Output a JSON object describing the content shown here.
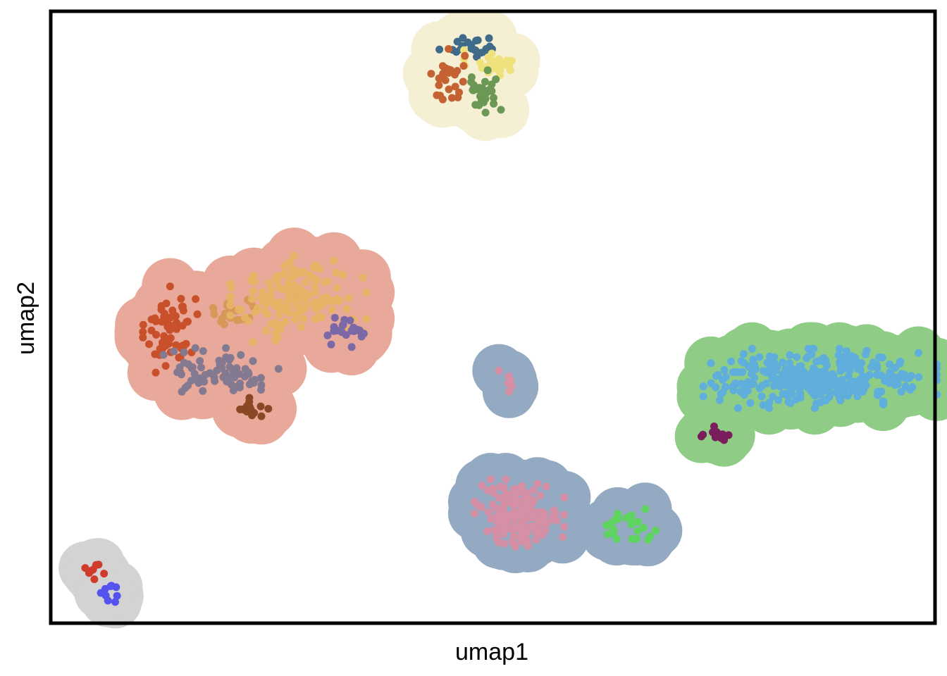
{
  "chart_data": {
    "type": "scatter",
    "title": "",
    "xlabel": "umap1",
    "ylabel": "umap2",
    "xlim": [
      0,
      100
    ],
    "ylim": [
      0,
      100
    ],
    "grid": false,
    "legend": "none",
    "ticks": "none",
    "halo_groups": [
      {
        "name": "",
        "color": "#f5f0d4",
        "radius": 3.2,
        "members": [
          "steelblue",
          "yellow",
          "rust_top",
          "olive"
        ]
      },
      {
        "name": "",
        "color": "#e8a99a",
        "radius": 3.2,
        "members": [
          "orange_red",
          "tan_small",
          "golden",
          "purple",
          "grey_purple",
          "brown"
        ]
      },
      {
        "name": "",
        "color": "#93aac2",
        "radius": 3.0,
        "members": [
          "pink_small",
          "pink",
          "green_bright"
        ]
      },
      {
        "name": "",
        "color": "#8fcd87",
        "radius": 3.0,
        "members": [
          "sky_blue",
          "magenta"
        ]
      },
      {
        "name": "",
        "color": "#d3d3d3",
        "radius": 3.0,
        "members": [
          "red_small",
          "blue_small"
        ]
      }
    ],
    "series": [
      {
        "id": "steelblue",
        "color": "#3f6a8a",
        "clusters": [
          {
            "cx": 47.5,
            "cy": 94.3,
            "sx": 2.0,
            "sy": 0.9,
            "n": 22
          }
        ]
      },
      {
        "id": "yellow",
        "color": "#efe27c",
        "clusters": [
          {
            "cx": 49.6,
            "cy": 91.5,
            "sx": 1.3,
            "sy": 1.1,
            "n": 28
          }
        ]
      },
      {
        "id": "rust_top",
        "color": "#c46234",
        "clusters": [
          {
            "cx": 45.0,
            "cy": 89.0,
            "sx": 0.9,
            "sy": 2.2,
            "n": 30
          }
        ]
      },
      {
        "id": "olive",
        "color": "#6b9955",
        "clusters": [
          {
            "cx": 48.9,
            "cy": 87.0,
            "sx": 1.1,
            "sy": 1.7,
            "n": 28
          }
        ]
      },
      {
        "id": "orange_red",
        "color": "#c8502a",
        "clusters": [
          {
            "cx": 13.5,
            "cy": 48.0,
            "sx": 1.4,
            "sy": 3.2,
            "n": 65
          }
        ]
      },
      {
        "id": "tan_small",
        "color": "#d89858",
        "clusters": [
          {
            "cx": 20.2,
            "cy": 51.0,
            "sx": 1.6,
            "sy": 1.4,
            "n": 22
          }
        ]
      },
      {
        "id": "golden",
        "color": "#e6b266",
        "clusters": [
          {
            "cx": 28.0,
            "cy": 53.0,
            "sx": 3.5,
            "sy": 3.2,
            "n": 150
          }
        ]
      },
      {
        "id": "purple",
        "color": "#7b68a6",
        "clusters": [
          {
            "cx": 33.0,
            "cy": 47.5,
            "sx": 1.8,
            "sy": 1.1,
            "n": 22
          }
        ]
      },
      {
        "id": "grey_purple",
        "color": "#837a91",
        "clusters": [
          {
            "cx": 19.8,
            "cy": 41.0,
            "sx": 3.2,
            "sy": 1.8,
            "n": 70
          }
        ]
      },
      {
        "id": "brown",
        "color": "#8b4725",
        "clusters": [
          {
            "cx": 22.5,
            "cy": 35.0,
            "sx": 1.2,
            "sy": 1.0,
            "n": 14
          }
        ]
      },
      {
        "id": "pink_small",
        "color": "#d590a6",
        "clusters": [
          {
            "cx": 52.0,
            "cy": 40.0,
            "sx": 0.6,
            "sy": 1.2,
            "n": 7
          }
        ]
      },
      {
        "id": "pink",
        "color": "#d590a6",
        "clusters": [
          {
            "cx": 53.0,
            "cy": 18.0,
            "sx": 2.3,
            "sy": 2.5,
            "n": 160
          }
        ]
      },
      {
        "id": "green_bright",
        "color": "#5fd35f",
        "clusters": [
          {
            "cx": 65.0,
            "cy": 16.0,
            "sx": 1.6,
            "sy": 1.2,
            "n": 24
          }
        ]
      },
      {
        "id": "sky_blue",
        "color": "#5faedb",
        "clusters": [
          {
            "cx": 87.0,
            "cy": 40.0,
            "sx": 6.0,
            "sy": 2.2,
            "n": 320
          }
        ]
      },
      {
        "id": "magenta",
        "color": "#7a1d5c",
        "clusters": [
          {
            "cx": 75.4,
            "cy": 31.0,
            "sx": 0.9,
            "sy": 0.7,
            "n": 12
          }
        ]
      },
      {
        "id": "red_small",
        "color": "#d03b2c",
        "clusters": [
          {
            "cx": 4.7,
            "cy": 8.5,
            "sx": 0.6,
            "sy": 0.6,
            "n": 8
          }
        ]
      },
      {
        "id": "blue_small",
        "color": "#5553ee",
        "clusters": [
          {
            "cx": 6.4,
            "cy": 4.8,
            "sx": 0.5,
            "sy": 0.6,
            "n": 9
          }
        ]
      }
    ]
  }
}
